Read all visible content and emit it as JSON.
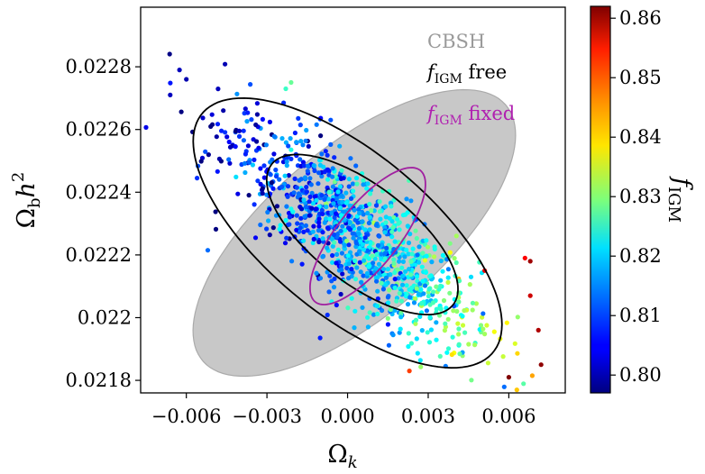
{
  "chart_data": {
    "type": "scatter",
    "title": "",
    "xlabel": {
      "base": "Ω",
      "sub": "k"
    },
    "ylabel": {
      "base": "Ω",
      "sub": "b",
      "mid": "h",
      "sup": "2"
    },
    "xlim": [
      -0.0077,
      0.0081
    ],
    "ylim": [
      0.02176,
      0.02299
    ],
    "x_ticks": [
      -0.006,
      -0.003,
      0.0,
      0.003,
      0.006
    ],
    "x_tick_labels": [
      "−0.006",
      "−0.003",
      "0.000",
      "0.003",
      "0.006"
    ],
    "y_ticks": [
      0.0218,
      0.022,
      0.0222,
      0.0224,
      0.0226,
      0.0228
    ],
    "y_tick_labels": [
      "0.0218",
      "0.022",
      "0.0222",
      "0.0224",
      "0.0226",
      "0.0228"
    ],
    "grid": false,
    "legend_position": "top-right",
    "legend": [
      {
        "label": "CBSH",
        "color": "#9a9a9a"
      },
      {
        "label_base": "f",
        "label_sub": "IGM",
        "label_rest": " free",
        "color": "#000000"
      },
      {
        "label_base": "f",
        "label_sub": "IGM",
        "label_rest": " fixed",
        "color": "#b020b0"
      }
    ],
    "colorbar": {
      "label_base": "f",
      "label_sub": "IGM",
      "range": [
        0.797,
        0.862
      ],
      "ticks": [
        0.8,
        0.81,
        0.82,
        0.83,
        0.84,
        0.85,
        0.86
      ],
      "tick_labels": [
        "0.80",
        "0.81",
        "0.82",
        "0.83",
        "0.84",
        "0.85",
        "0.86"
      ],
      "colormap": "jet"
    },
    "contours": [
      {
        "name": "CBSH",
        "style": "filled",
        "color": "#c8c8c8",
        "edge": "#aaaaaa",
        "center": [
          0.00025,
          0.02227
        ],
        "semi_major": [
          0.0055,
          0.00042
        ],
        "semi_minor": [
          0.0024,
          -0.00018
        ]
      },
      {
        "name": "f_IGM free 2σ",
        "style": "line",
        "color": "#000000",
        "center": [
          0.0,
          0.02227
        ],
        "semi_major": [
          0.00525,
          -0.000395
        ],
        "semi_minor": [
          -0.00233,
          -0.00017
        ]
      },
      {
        "name": "f_IGM free 1σ",
        "style": "line",
        "color": "#000000",
        "center": [
          0.00055,
          0.022265
        ],
        "semi_major": [
          0.00325,
          -0.000235
        ],
        "semi_minor": [
          -0.00145,
          -0.0001
        ]
      },
      {
        "name": "f_IGM fixed",
        "style": "line",
        "color": "#a020a0",
        "center": [
          0.00075,
          0.02226
        ],
        "semi_major": [
          -0.00195,
          -0.00021
        ],
        "semi_minor": [
          -0.0009,
          6e-05
        ]
      }
    ],
    "points": {
      "count": 1100,
      "center": [
        0.0003,
        0.022265
      ],
      "sigma_x": 0.0023,
      "sigma_y": 0.00018,
      "correlation": -0.82,
      "color_slope": 2.6,
      "color_intercept": 0.8145,
      "color_noise": 0.006
    },
    "highlight_points": [
      [
        -0.0049,
        0.022282,
        0.797
      ],
      [
        -0.006,
        0.02276,
        0.8
      ],
      [
        -0.0066,
        0.02271,
        0.801
      ],
      [
        -0.0056,
        0.022445,
        0.808
      ],
      [
        -0.0052,
        0.022215,
        0.812
      ],
      [
        -0.0021,
        0.02275,
        0.828
      ],
      [
        -0.0023,
        0.02273,
        0.825
      ],
      [
        0.0068,
        0.02218,
        0.86
      ],
      [
        0.0072,
        0.02185,
        0.861
      ],
      [
        0.006,
        0.02181,
        0.862
      ],
      [
        0.0071,
        0.02196,
        0.859
      ],
      [
        0.0068,
        0.02207,
        0.857
      ],
      [
        0.0066,
        0.02219,
        0.854
      ],
      [
        0.0051,
        0.02215,
        0.855
      ],
      [
        0.0023,
        0.02183,
        0.85
      ]
    ]
  }
}
